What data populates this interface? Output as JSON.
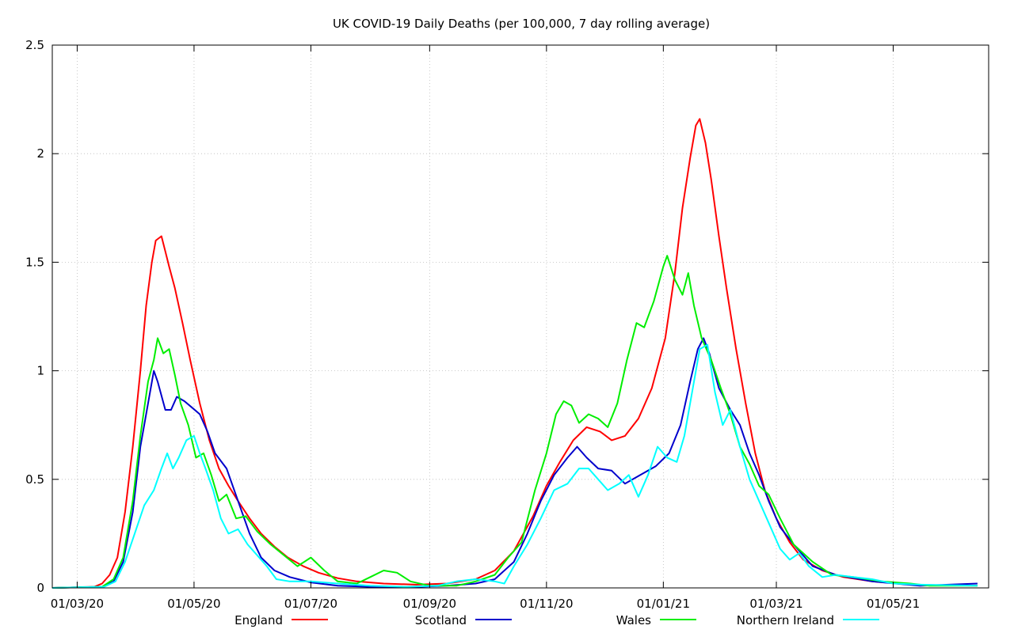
{
  "chart_data": {
    "type": "line",
    "title": "UK COVID-19 Daily Deaths (per 100,000, 7 day rolling average)",
    "xlabel": "",
    "ylabel": "",
    "x_tick_labels": [
      "01/03/20",
      "01/05/20",
      "01/07/20",
      "01/09/20",
      "01/11/20",
      "01/01/21",
      "01/03/21",
      "01/05/21"
    ],
    "y_tick_labels": [
      "0",
      "0.5",
      "1",
      "1.5",
      "2",
      "2.5"
    ],
    "ylim": [
      0,
      2.5
    ],
    "grid": true,
    "legend_position": "bottom",
    "series": [
      {
        "name": "England",
        "color": "#ff0000",
        "points": [
          [
            "2020-02-17",
            0
          ],
          [
            "2020-03-10",
            0.005
          ],
          [
            "2020-03-14",
            0.02
          ],
          [
            "2020-03-18",
            0.06
          ],
          [
            "2020-03-22",
            0.14
          ],
          [
            "2020-03-26",
            0.35
          ],
          [
            "2020-03-30",
            0.65
          ],
          [
            "2020-04-03",
            1.0
          ],
          [
            "2020-04-06",
            1.3
          ],
          [
            "2020-04-09",
            1.5
          ],
          [
            "2020-04-11",
            1.6
          ],
          [
            "2020-04-14",
            1.62
          ],
          [
            "2020-04-16",
            1.55
          ],
          [
            "2020-04-18",
            1.48
          ],
          [
            "2020-04-21",
            1.38
          ],
          [
            "2020-04-25",
            1.22
          ],
          [
            "2020-04-29",
            1.05
          ],
          [
            "2020-05-04",
            0.85
          ],
          [
            "2020-05-09",
            0.68
          ],
          [
            "2020-05-14",
            0.55
          ],
          [
            "2020-05-19",
            0.47
          ],
          [
            "2020-05-24",
            0.4
          ],
          [
            "2020-05-30",
            0.32
          ],
          [
            "2020-06-05",
            0.25
          ],
          [
            "2020-06-12",
            0.19
          ],
          [
            "2020-06-19",
            0.14
          ],
          [
            "2020-06-27",
            0.1
          ],
          [
            "2020-07-05",
            0.07
          ],
          [
            "2020-07-15",
            0.045
          ],
          [
            "2020-07-25",
            0.03
          ],
          [
            "2020-08-08",
            0.02
          ],
          [
            "2020-08-25",
            0.015
          ],
          [
            "2020-09-10",
            0.02
          ],
          [
            "2020-09-25",
            0.04
          ],
          [
            "2020-10-05",
            0.08
          ],
          [
            "2020-10-15",
            0.17
          ],
          [
            "2020-10-25",
            0.33
          ],
          [
            "2020-11-01",
            0.47
          ],
          [
            "2020-11-08",
            0.58
          ],
          [
            "2020-11-15",
            0.68
          ],
          [
            "2020-11-22",
            0.74
          ],
          [
            "2020-11-29",
            0.72
          ],
          [
            "2020-12-05",
            0.68
          ],
          [
            "2020-12-12",
            0.7
          ],
          [
            "2020-12-19",
            0.78
          ],
          [
            "2020-12-26",
            0.92
          ],
          [
            "2021-01-02",
            1.15
          ],
          [
            "2021-01-07",
            1.45
          ],
          [
            "2021-01-11",
            1.75
          ],
          [
            "2021-01-15",
            1.98
          ],
          [
            "2021-01-18",
            2.13
          ],
          [
            "2021-01-20",
            2.16
          ],
          [
            "2021-01-23",
            2.05
          ],
          [
            "2021-01-26",
            1.88
          ],
          [
            "2021-01-30",
            1.62
          ],
          [
            "2021-02-03",
            1.38
          ],
          [
            "2021-02-08",
            1.1
          ],
          [
            "2021-02-13",
            0.85
          ],
          [
            "2021-02-18",
            0.62
          ],
          [
            "2021-02-23",
            0.45
          ],
          [
            "2021-03-01",
            0.32
          ],
          [
            "2021-03-08",
            0.21
          ],
          [
            "2021-03-15",
            0.13
          ],
          [
            "2021-03-25",
            0.08
          ],
          [
            "2021-04-05",
            0.05
          ],
          [
            "2021-04-20",
            0.03
          ],
          [
            "2021-05-10",
            0.015
          ],
          [
            "2021-06-14",
            0.01
          ]
        ]
      },
      {
        "name": "Scotland",
        "color": "#0000cc",
        "points": [
          [
            "2020-02-17",
            0
          ],
          [
            "2020-03-14",
            0.005
          ],
          [
            "2020-03-20",
            0.03
          ],
          [
            "2020-03-25",
            0.12
          ],
          [
            "2020-03-30",
            0.35
          ],
          [
            "2020-04-03",
            0.65
          ],
          [
            "2020-04-07",
            0.85
          ],
          [
            "2020-04-10",
            1.0
          ],
          [
            "2020-04-12",
            0.95
          ],
          [
            "2020-04-16",
            0.82
          ],
          [
            "2020-04-19",
            0.82
          ],
          [
            "2020-04-22",
            0.88
          ],
          [
            "2020-04-26",
            0.86
          ],
          [
            "2020-04-30",
            0.83
          ],
          [
            "2020-05-04",
            0.8
          ],
          [
            "2020-05-08",
            0.72
          ],
          [
            "2020-05-12",
            0.62
          ],
          [
            "2020-05-18",
            0.55
          ],
          [
            "2020-05-24",
            0.4
          ],
          [
            "2020-05-30",
            0.25
          ],
          [
            "2020-06-05",
            0.14
          ],
          [
            "2020-06-12",
            0.08
          ],
          [
            "2020-06-20",
            0.05
          ],
          [
            "2020-07-01",
            0.025
          ],
          [
            "2020-07-15",
            0.01
          ],
          [
            "2020-08-01",
            0.005
          ],
          [
            "2020-08-20",
            0.003
          ],
          [
            "2020-09-10",
            0.01
          ],
          [
            "2020-09-25",
            0.02
          ],
          [
            "2020-10-05",
            0.04
          ],
          [
            "2020-10-15",
            0.12
          ],
          [
            "2020-10-22",
            0.25
          ],
          [
            "2020-10-29",
            0.4
          ],
          [
            "2020-11-05",
            0.52
          ],
          [
            "2020-11-12",
            0.6
          ],
          [
            "2020-11-17",
            0.65
          ],
          [
            "2020-11-22",
            0.6
          ],
          [
            "2020-11-28",
            0.55
          ],
          [
            "2020-12-05",
            0.54
          ],
          [
            "2020-12-12",
            0.48
          ],
          [
            "2020-12-20",
            0.52
          ],
          [
            "2020-12-28",
            0.56
          ],
          [
            "2021-01-04",
            0.62
          ],
          [
            "2021-01-10",
            0.75
          ],
          [
            "2021-01-15",
            0.95
          ],
          [
            "2021-01-19",
            1.1
          ],
          [
            "2021-01-22",
            1.15
          ],
          [
            "2021-01-25",
            1.08
          ],
          [
            "2021-01-30",
            0.92
          ],
          [
            "2021-02-05",
            0.82
          ],
          [
            "2021-02-10",
            0.75
          ],
          [
            "2021-02-15",
            0.62
          ],
          [
            "2021-02-20",
            0.52
          ],
          [
            "2021-02-25",
            0.4
          ],
          [
            "2021-03-03",
            0.28
          ],
          [
            "2021-03-10",
            0.2
          ],
          [
            "2021-03-20",
            0.1
          ],
          [
            "2021-04-01",
            0.06
          ],
          [
            "2021-04-20",
            0.03
          ],
          [
            "2021-05-15",
            0.01
          ],
          [
            "2021-06-14",
            0.02
          ]
        ]
      },
      {
        "name": "Wales",
        "color": "#00ee00",
        "points": [
          [
            "2020-02-17",
            0
          ],
          [
            "2020-03-14",
            0.005
          ],
          [
            "2020-03-20",
            0.04
          ],
          [
            "2020-03-25",
            0.14
          ],
          [
            "2020-03-30",
            0.4
          ],
          [
            "2020-04-03",
            0.7
          ],
          [
            "2020-04-07",
            0.95
          ],
          [
            "2020-04-10",
            1.05
          ],
          [
            "2020-04-12",
            1.15
          ],
          [
            "2020-04-15",
            1.08
          ],
          [
            "2020-04-18",
            1.1
          ],
          [
            "2020-04-21",
            0.98
          ],
          [
            "2020-04-24",
            0.85
          ],
          [
            "2020-04-28",
            0.75
          ],
          [
            "2020-05-02",
            0.6
          ],
          [
            "2020-05-06",
            0.62
          ],
          [
            "2020-05-10",
            0.52
          ],
          [
            "2020-05-14",
            0.4
          ],
          [
            "2020-05-18",
            0.43
          ],
          [
            "2020-05-23",
            0.32
          ],
          [
            "2020-05-28",
            0.33
          ],
          [
            "2020-06-03",
            0.26
          ],
          [
            "2020-06-10",
            0.2
          ],
          [
            "2020-06-17",
            0.15
          ],
          [
            "2020-06-24",
            0.1
          ],
          [
            "2020-07-01",
            0.14
          ],
          [
            "2020-07-08",
            0.08
          ],
          [
            "2020-07-15",
            0.03
          ],
          [
            "2020-07-25",
            0.02
          ],
          [
            "2020-08-01",
            0.05
          ],
          [
            "2020-08-08",
            0.08
          ],
          [
            "2020-08-15",
            0.07
          ],
          [
            "2020-08-22",
            0.03
          ],
          [
            "2020-09-01",
            0.01
          ],
          [
            "2020-09-15",
            0.01
          ],
          [
            "2020-09-25",
            0.03
          ],
          [
            "2020-10-05",
            0.06
          ],
          [
            "2020-10-12",
            0.14
          ],
          [
            "2020-10-19",
            0.21
          ],
          [
            "2020-10-26",
            0.45
          ],
          [
            "2020-11-01",
            0.62
          ],
          [
            "2020-11-06",
            0.8
          ],
          [
            "2020-11-10",
            0.86
          ],
          [
            "2020-11-14",
            0.84
          ],
          [
            "2020-11-18",
            0.76
          ],
          [
            "2020-11-23",
            0.8
          ],
          [
            "2020-11-28",
            0.78
          ],
          [
            "2020-12-03",
            0.74
          ],
          [
            "2020-12-08",
            0.85
          ],
          [
            "2020-12-13",
            1.05
          ],
          [
            "2020-12-18",
            1.22
          ],
          [
            "2020-12-22",
            1.2
          ],
          [
            "2020-12-27",
            1.32
          ],
          [
            "2021-01-01",
            1.48
          ],
          [
            "2021-01-03",
            1.53
          ],
          [
            "2021-01-07",
            1.42
          ],
          [
            "2021-01-11",
            1.35
          ],
          [
            "2021-01-14",
            1.45
          ],
          [
            "2021-01-17",
            1.3
          ],
          [
            "2021-01-21",
            1.15
          ],
          [
            "2021-01-26",
            1.05
          ],
          [
            "2021-01-31",
            0.92
          ],
          [
            "2021-02-05",
            0.8
          ],
          [
            "2021-02-10",
            0.65
          ],
          [
            "2021-02-15",
            0.57
          ],
          [
            "2021-02-20",
            0.47
          ],
          [
            "2021-02-25",
            0.43
          ],
          [
            "2021-03-03",
            0.32
          ],
          [
            "2021-03-10",
            0.2
          ],
          [
            "2021-03-20",
            0.12
          ],
          [
            "2021-03-30",
            0.06
          ],
          [
            "2021-04-10",
            0.05
          ],
          [
            "2021-04-25",
            0.03
          ],
          [
            "2021-05-10",
            0.02
          ],
          [
            "2021-05-20",
            0.01
          ],
          [
            "2021-06-14",
            0.01
          ]
        ]
      },
      {
        "name": "Northern Ireland",
        "color": "#00ffff",
        "points": [
          [
            "2020-02-17",
            0
          ],
          [
            "2020-03-15",
            0.005
          ],
          [
            "2020-03-21",
            0.03
          ],
          [
            "2020-03-26",
            0.12
          ],
          [
            "2020-03-31",
            0.25
          ],
          [
            "2020-04-05",
            0.38
          ],
          [
            "2020-04-10",
            0.45
          ],
          [
            "2020-04-14",
            0.55
          ],
          [
            "2020-04-17",
            0.62
          ],
          [
            "2020-04-20",
            0.55
          ],
          [
            "2020-04-23",
            0.6
          ],
          [
            "2020-04-27",
            0.68
          ],
          [
            "2020-05-01",
            0.7
          ],
          [
            "2020-05-04",
            0.62
          ],
          [
            "2020-05-07",
            0.55
          ],
          [
            "2020-05-11",
            0.45
          ],
          [
            "2020-05-15",
            0.32
          ],
          [
            "2020-05-19",
            0.25
          ],
          [
            "2020-05-24",
            0.27
          ],
          [
            "2020-05-29",
            0.2
          ],
          [
            "2020-06-03",
            0.15
          ],
          [
            "2020-06-08",
            0.1
          ],
          [
            "2020-06-13",
            0.04
          ],
          [
            "2020-06-20",
            0.03
          ],
          [
            "2020-07-01",
            0.03
          ],
          [
            "2020-07-15",
            0.02
          ],
          [
            "2020-08-01",
            0.01
          ],
          [
            "2020-08-20",
            0.005
          ],
          [
            "2020-09-05",
            0.01
          ],
          [
            "2020-09-15",
            0.03
          ],
          [
            "2020-09-25",
            0.04
          ],
          [
            "2020-10-05",
            0.03
          ],
          [
            "2020-10-10",
            0.02
          ],
          [
            "2020-10-15",
            0.1
          ],
          [
            "2020-10-22",
            0.2
          ],
          [
            "2020-10-29",
            0.32
          ],
          [
            "2020-11-05",
            0.45
          ],
          [
            "2020-11-12",
            0.48
          ],
          [
            "2020-11-18",
            0.55
          ],
          [
            "2020-11-23",
            0.55
          ],
          [
            "2020-11-28",
            0.5
          ],
          [
            "2020-12-03",
            0.45
          ],
          [
            "2020-12-09",
            0.48
          ],
          [
            "2020-12-14",
            0.52
          ],
          [
            "2020-12-19",
            0.42
          ],
          [
            "2020-12-24",
            0.52
          ],
          [
            "2020-12-29",
            0.65
          ],
          [
            "2021-01-03",
            0.6
          ],
          [
            "2021-01-08",
            0.58
          ],
          [
            "2021-01-12",
            0.7
          ],
          [
            "2021-01-16",
            0.9
          ],
          [
            "2021-01-20",
            1.1
          ],
          [
            "2021-01-24",
            1.12
          ],
          [
            "2021-01-28",
            0.9
          ],
          [
            "2021-02-01",
            0.75
          ],
          [
            "2021-02-05",
            0.82
          ],
          [
            "2021-02-10",
            0.65
          ],
          [
            "2021-02-15",
            0.5
          ],
          [
            "2021-02-20",
            0.4
          ],
          [
            "2021-02-25",
            0.3
          ],
          [
            "2021-03-03",
            0.18
          ],
          [
            "2021-03-08",
            0.13
          ],
          [
            "2021-03-13",
            0.16
          ],
          [
            "2021-03-18",
            0.1
          ],
          [
            "2021-03-25",
            0.05
          ],
          [
            "2021-04-01",
            0.06
          ],
          [
            "2021-04-10",
            0.05
          ],
          [
            "2021-04-20",
            0.04
          ],
          [
            "2021-05-01",
            0.02
          ],
          [
            "2021-05-15",
            0.015
          ],
          [
            "2021-06-14",
            0.01
          ]
        ]
      }
    ]
  }
}
